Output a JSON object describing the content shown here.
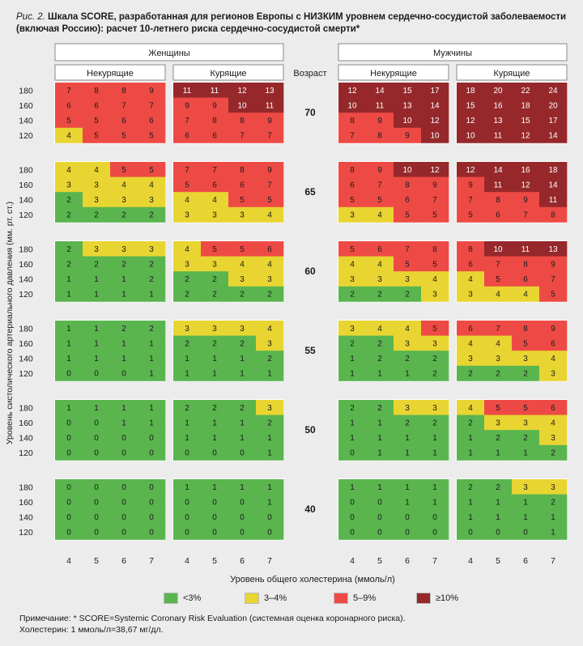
{
  "caption": {
    "fig": "Рис. 2.",
    "text": "Шкала SCORE, разработанная для регионов Европы с НИЗКИМ уровнем сердечно-сосудистой заболеваемости (включая Россию): расчет 10-летнего риска сердечно-сосудистой смерти*"
  },
  "chart_data": {
    "type": "heatmap",
    "groups": [
      {
        "label": "Женщины",
        "subgroups": [
          "Некурящие",
          "Курящие"
        ]
      },
      {
        "label": "Мужчины",
        "subgroups": [
          "Некурящие",
          "Курящие"
        ]
      }
    ],
    "age_header": "Возраст",
    "ages": [
      "70",
      "65",
      "60",
      "55",
      "50",
      "40"
    ],
    "bp_levels": [
      "180",
      "160",
      "140",
      "120"
    ],
    "cholesterol_levels": [
      "4",
      "5",
      "6",
      "7"
    ],
    "ylabel": "Уровень систолического артериального давления (мм. рт. ст.)",
    "xlabel": "Уровень общего холестерина (ммоль/л)",
    "legend": [
      {
        "label": "<3%",
        "color": "#5ab54f"
      },
      {
        "label": "3–4%",
        "color": "#e8d531"
      },
      {
        "label": "5–9%",
        "color": "#ee4a45"
      },
      {
        "label": "≥10%",
        "color": "#96282b"
      }
    ],
    "values": {
      "women_nonsmoker": [
        [
          [
            7,
            8,
            8,
            9
          ],
          [
            6,
            6,
            7,
            7
          ],
          [
            5,
            5,
            6,
            6
          ],
          [
            4,
            5,
            5,
            5
          ]
        ],
        [
          [
            4,
            4,
            5,
            5
          ],
          [
            3,
            3,
            4,
            4
          ],
          [
            2,
            3,
            3,
            3
          ],
          [
            2,
            2,
            2,
            2
          ]
        ],
        [
          [
            2,
            3,
            3,
            3
          ],
          [
            2,
            2,
            2,
            2
          ],
          [
            1,
            1,
            1,
            2
          ],
          [
            1,
            1,
            1,
            1
          ]
        ],
        [
          [
            1,
            1,
            2,
            2
          ],
          [
            1,
            1,
            1,
            1
          ],
          [
            1,
            1,
            1,
            1
          ],
          [
            0,
            0,
            0,
            1
          ]
        ],
        [
          [
            1,
            1,
            1,
            1
          ],
          [
            0,
            0,
            1,
            1
          ],
          [
            0,
            0,
            0,
            0
          ],
          [
            0,
            0,
            0,
            0
          ]
        ],
        [
          [
            0,
            0,
            0,
            0
          ],
          [
            0,
            0,
            0,
            0
          ],
          [
            0,
            0,
            0,
            0
          ],
          [
            0,
            0,
            0,
            0
          ]
        ]
      ],
      "women_smoker": [
        [
          [
            11,
            11,
            12,
            13
          ],
          [
            9,
            9,
            10,
            11
          ],
          [
            7,
            8,
            8,
            9
          ],
          [
            6,
            6,
            7,
            7
          ]
        ],
        [
          [
            7,
            7,
            8,
            9
          ],
          [
            5,
            6,
            6,
            7
          ],
          [
            4,
            4,
            5,
            5
          ],
          [
            3,
            3,
            3,
            4
          ]
        ],
        [
          [
            4,
            5,
            5,
            6
          ],
          [
            3,
            3,
            4,
            4
          ],
          [
            2,
            2,
            3,
            3
          ],
          [
            2,
            2,
            2,
            2
          ]
        ],
        [
          [
            3,
            3,
            3,
            4
          ],
          [
            2,
            2,
            2,
            3
          ],
          [
            1,
            1,
            1,
            2
          ],
          [
            1,
            1,
            1,
            1
          ]
        ],
        [
          [
            2,
            2,
            2,
            3
          ],
          [
            1,
            1,
            1,
            2
          ],
          [
            1,
            1,
            1,
            1
          ],
          [
            0,
            0,
            0,
            1
          ]
        ],
        [
          [
            1,
            1,
            1,
            1
          ],
          [
            0,
            0,
            0,
            1
          ],
          [
            0,
            0,
            0,
            0
          ],
          [
            0,
            0,
            0,
            0
          ]
        ]
      ],
      "men_nonsmoker": [
        [
          [
            12,
            14,
            15,
            17
          ],
          [
            10,
            11,
            13,
            14
          ],
          [
            8,
            9,
            10,
            12
          ],
          [
            7,
            8,
            9,
            10
          ]
        ],
        [
          [
            8,
            9,
            10,
            12
          ],
          [
            6,
            7,
            8,
            9
          ],
          [
            5,
            5,
            6,
            7
          ],
          [
            3,
            4,
            5,
            5
          ]
        ],
        [
          [
            5,
            6,
            7,
            8
          ],
          [
            4,
            4,
            5,
            5
          ],
          [
            3,
            3,
            3,
            4
          ],
          [
            2,
            2,
            2,
            3
          ]
        ],
        [
          [
            3,
            4,
            4,
            5
          ],
          [
            2,
            2,
            3,
            3
          ],
          [
            1,
            2,
            2,
            2
          ],
          [
            1,
            1,
            1,
            2
          ]
        ],
        [
          [
            2,
            2,
            3,
            3
          ],
          [
            1,
            1,
            2,
            2
          ],
          [
            1,
            1,
            1,
            1
          ],
          [
            0,
            1,
            1,
            1
          ]
        ],
        [
          [
            1,
            1,
            1,
            1
          ],
          [
            0,
            0,
            1,
            1
          ],
          [
            0,
            0,
            0,
            0
          ],
          [
            0,
            0,
            0,
            0
          ]
        ]
      ],
      "men_smoker": [
        [
          [
            18,
            20,
            22,
            24
          ],
          [
            15,
            16,
            18,
            20
          ],
          [
            12,
            13,
            15,
            17
          ],
          [
            10,
            11,
            12,
            14
          ]
        ],
        [
          [
            12,
            14,
            16,
            18
          ],
          [
            9,
            11,
            12,
            14
          ],
          [
            7,
            8,
            9,
            11
          ],
          [
            5,
            6,
            7,
            8
          ]
        ],
        [
          [
            8,
            10,
            11,
            13
          ],
          [
            6,
            7,
            8,
            9
          ],
          [
            4,
            5,
            6,
            7
          ],
          [
            3,
            4,
            4,
            5
          ]
        ],
        [
          [
            6,
            7,
            8,
            9
          ],
          [
            4,
            4,
            5,
            6
          ],
          [
            3,
            3,
            3,
            4
          ],
          [
            2,
            2,
            2,
            3
          ]
        ],
        [
          [
            4,
            5,
            5,
            6
          ],
          [
            2,
            3,
            3,
            4
          ],
          [
            1,
            2,
            2,
            3
          ],
          [
            1,
            1,
            1,
            2
          ]
        ],
        [
          [
            2,
            2,
            3,
            3
          ],
          [
            1,
            1,
            1,
            2
          ],
          [
            1,
            1,
            1,
            1
          ],
          [
            0,
            0,
            0,
            1
          ]
        ]
      ]
    }
  },
  "note": {
    "line1": "Примечание: * SCORE=Systemic Coronary Risk Evaluation (системная оценка коронарного риска).",
    "line2": "Холестерин: 1 ммоль/л=38,67 мг/дл."
  }
}
